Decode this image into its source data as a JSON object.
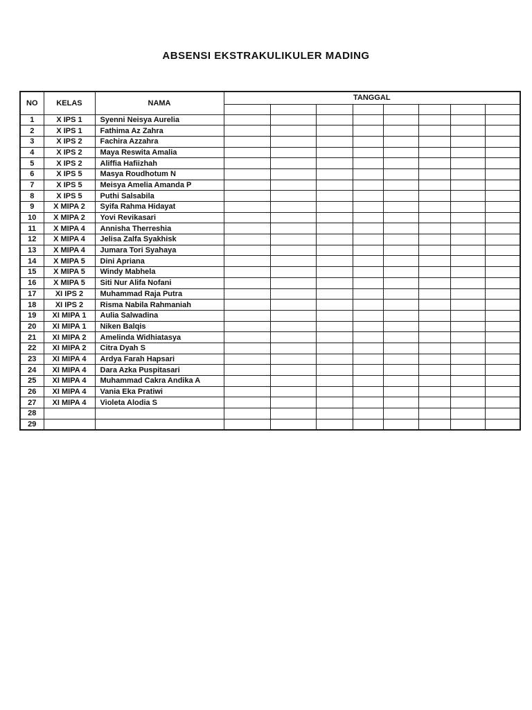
{
  "document": {
    "title": "ABSENSI EKSTRAKULIKULER MADING"
  },
  "colors": {
    "background": "#ffffff",
    "text": "#111111",
    "border": "#1c1c1c"
  },
  "table": {
    "headers": {
      "no": "NO",
      "kelas": "KELAS",
      "nama": "NAMA",
      "tanggal": "TANGGAL"
    },
    "date_columns": 8,
    "rows": [
      {
        "no": "1",
        "kelas": "X IPS 1",
        "nama": "Syenni Neisya Aurelia"
      },
      {
        "no": "2",
        "kelas": "X IPS 1",
        "nama": "Fathima Az Zahra"
      },
      {
        "no": "3",
        "kelas": "X IPS 2",
        "nama": "Fachira Azzahra"
      },
      {
        "no": "4",
        "kelas": "X IPS 2",
        "nama": "Maya Reswita Amalia"
      },
      {
        "no": "5",
        "kelas": "X IPS 2",
        "nama": "Aliffia Hafiizhah"
      },
      {
        "no": "6",
        "kelas": "X IPS 5",
        "nama": "Masya Roudhotum N"
      },
      {
        "no": "7",
        "kelas": "X IPS 5",
        "nama": "Meisya Amelia Amanda P"
      },
      {
        "no": "8",
        "kelas": "X IPS 5",
        "nama": "Puthi Salsabila"
      },
      {
        "no": "9",
        "kelas": "X MIPA 2",
        "nama": "Syifa Rahma Hidayat"
      },
      {
        "no": "10",
        "kelas": "X MIPA 2",
        "nama": "Yovi Revikasari"
      },
      {
        "no": "11",
        "kelas": "X MIPA 4",
        "nama": "Annisha Therreshia"
      },
      {
        "no": "12",
        "kelas": "X MIPA 4",
        "nama": "Jelisa Zalfa Syakhisk"
      },
      {
        "no": "13",
        "kelas": "X MIPA 4",
        "nama": "Jumara Tori Syahaya"
      },
      {
        "no": "14",
        "kelas": "X MIPA 5",
        "nama": "Dini Apriana"
      },
      {
        "no": "15",
        "kelas": "X MIPA 5",
        "nama": "Windy Mabhela"
      },
      {
        "no": "16",
        "kelas": "X MIPA 5",
        "nama": "Siti Nur Alifa Nofani"
      },
      {
        "no": "17",
        "kelas": "XI IPS 2",
        "nama": "Muhammad Raja Putra"
      },
      {
        "no": "18",
        "kelas": "XI IPS 2",
        "nama": "Risma Nabila Rahmaniah"
      },
      {
        "no": "19",
        "kelas": "XI MIPA 1",
        "nama": "Aulia Salwadina"
      },
      {
        "no": "20",
        "kelas": "XI MIPA 1",
        "nama": "Niken Balqis"
      },
      {
        "no": "21",
        "kelas": "XI MIPA 2",
        "nama": "Amelinda Widhiatasya"
      },
      {
        "no": "22",
        "kelas": "XI MIPA 2",
        "nama": "Citra Dyah S"
      },
      {
        "no": "23",
        "kelas": "XI MIPA 4",
        "nama": "Ardya Farah Hapsari"
      },
      {
        "no": "24",
        "kelas": "XI MIPA 4",
        "nama": "Dara Azka Puspitasari"
      },
      {
        "no": "25",
        "kelas": "XI MIPA 4",
        "nama": "Muhammad Cakra Andika A"
      },
      {
        "no": "26",
        "kelas": "XI MIPA 4",
        "nama": "Vania Eka Pratiwi"
      },
      {
        "no": "27",
        "kelas": "XI MIPA 4",
        "nama": "Violeta Alodia S"
      },
      {
        "no": "28",
        "kelas": "",
        "nama": ""
      },
      {
        "no": "29",
        "kelas": "",
        "nama": ""
      }
    ]
  }
}
